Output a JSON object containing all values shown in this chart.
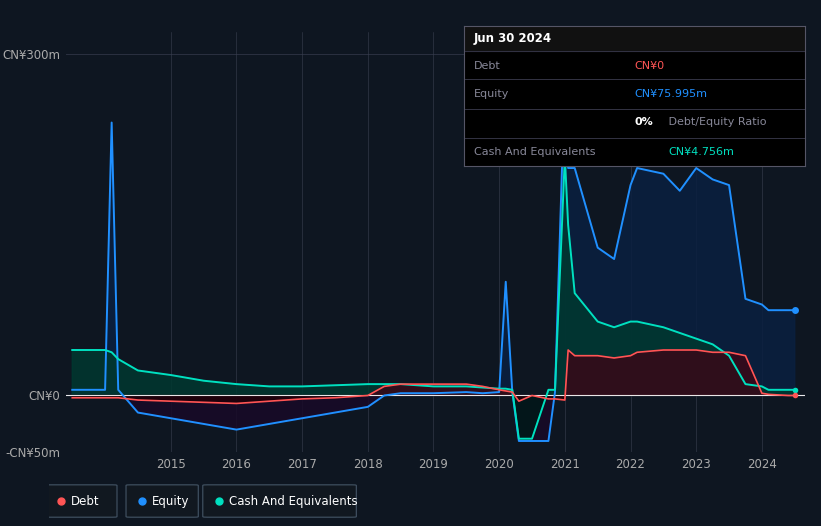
{
  "background_color": "#0e1621",
  "plot_bg_color": "#0e1621",
  "ylim": [
    -50,
    320
  ],
  "yticks": [
    -50,
    0,
    300
  ],
  "ytick_labels": [
    "-CN¥50m",
    "CN¥0",
    "CN¥300m"
  ],
  "debt_color": "#ff5555",
  "equity_color": "#2090ff",
  "cash_color": "#00e0c0",
  "equity_fill_color": "#0a2040",
  "cash_fill_color": "#003830",
  "debt_fill_color": "#380818",
  "time": [
    2013.5,
    2014.0,
    2014.1,
    2014.2,
    2014.5,
    2015.0,
    2015.5,
    2016.0,
    2016.5,
    2017.0,
    2017.5,
    2018.0,
    2018.25,
    2018.5,
    2019.0,
    2019.5,
    2019.75,
    2020.0,
    2020.1,
    2020.2,
    2020.3,
    2020.5,
    2020.75,
    2020.85,
    2021.0,
    2021.05,
    2021.15,
    2021.5,
    2021.75,
    2022.0,
    2022.1,
    2022.5,
    2022.75,
    2023.0,
    2023.25,
    2023.5,
    2023.75,
    2024.0,
    2024.1,
    2024.4,
    2024.5
  ],
  "equity": [
    5,
    5,
    240,
    5,
    -15,
    -20,
    -25,
    -30,
    -25,
    -20,
    -15,
    -10,
    0,
    2,
    2,
    3,
    2,
    3,
    100,
    3,
    -40,
    -40,
    -40,
    3,
    280,
    200,
    200,
    130,
    120,
    185,
    200,
    195,
    180,
    200,
    190,
    185,
    85,
    80,
    75,
    75,
    75
  ],
  "cash": [
    40,
    40,
    38,
    32,
    22,
    18,
    13,
    10,
    8,
    8,
    9,
    10,
    10,
    10,
    8,
    8,
    7,
    6,
    6,
    5,
    -38,
    -38,
    5,
    5,
    210,
    150,
    90,
    65,
    60,
    65,
    65,
    60,
    55,
    50,
    45,
    35,
    10,
    8,
    5,
    5,
    5
  ],
  "debt": [
    -2,
    -2,
    -2,
    -2,
    -4,
    -5,
    -6,
    -7,
    -5,
    -3,
    -2,
    0,
    8,
    10,
    10,
    10,
    8,
    5,
    4,
    3,
    -5,
    0,
    -3,
    -3,
    -4,
    40,
    35,
    35,
    33,
    35,
    38,
    40,
    40,
    40,
    38,
    38,
    35,
    2,
    1,
    0,
    0
  ],
  "info_box": {
    "date": "Jun 30 2024",
    "debt_label": "Debt",
    "debt_value": "CN¥0",
    "equity_label": "Equity",
    "equity_value": "CN¥75.995m",
    "ratio_bold": "0%",
    "ratio_rest": " Debt/Equity Ratio",
    "cash_label": "Cash And Equivalents",
    "cash_value": "CN¥4.756m"
  },
  "legend": [
    {
      "label": "Debt",
      "color": "#ff5555"
    },
    {
      "label": "Equity",
      "color": "#2090ff"
    },
    {
      "label": "Cash And Equivalents",
      "color": "#00e0c0"
    }
  ]
}
